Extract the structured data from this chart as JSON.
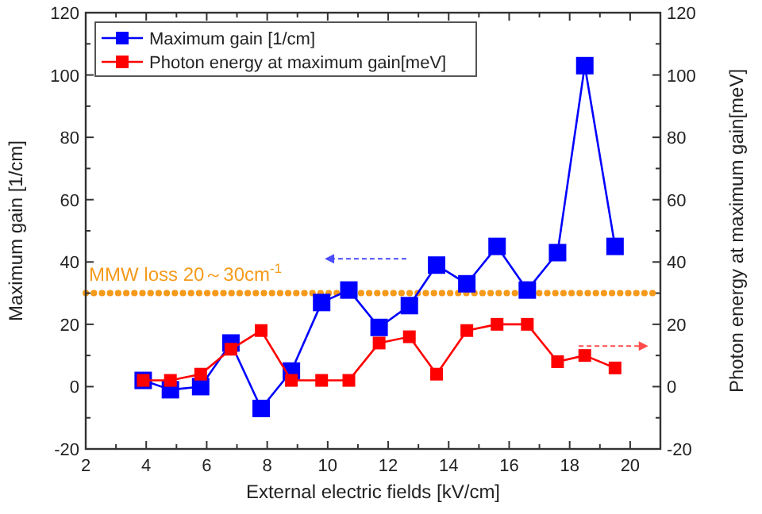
{
  "chart_data": {
    "type": "line",
    "xlabel": "External electric fields [kV/cm]",
    "ylabel": "Maximum gain [1/cm]",
    "y2label": "Photon energy at maximum gain[meV]",
    "x": [
      3.9,
      4.8,
      5.8,
      6.8,
      7.8,
      8.8,
      9.8,
      10.7,
      11.7,
      12.7,
      13.6,
      14.6,
      15.6,
      16.6,
      17.6,
      18.5,
      19.5
    ],
    "series": [
      {
        "name": "Maximum gain [1/cm]",
        "color": "#0000ff",
        "values": [
          2,
          -1,
          0,
          14,
          -7,
          5,
          27,
          31,
          19,
          26,
          39,
          33,
          45,
          31,
          43,
          103,
          45
        ]
      },
      {
        "name": "Photon energy at maximum gain[meV]",
        "color": "#ff0000",
        "axis": "y2",
        "values": [
          2,
          2,
          4,
          12,
          18,
          2,
          2,
          2,
          14,
          16,
          4,
          18,
          20,
          20,
          8,
          10,
          6
        ]
      }
    ],
    "xlim": [
      2,
      21
    ],
    "xticks": [
      2,
      4,
      6,
      8,
      10,
      12,
      14,
      16,
      18,
      20
    ],
    "ylim": [
      -20,
      120
    ],
    "yticks": [
      -20,
      0,
      20,
      40,
      60,
      80,
      100,
      120
    ],
    "y2lim": [
      -20,
      120
    ],
    "y2ticks": [
      -20,
      0,
      20,
      40,
      60,
      80,
      100,
      120
    ],
    "ref_lines": [
      {
        "axis": "y",
        "value": 30,
        "label": "MMW loss 20～30cm$^{-1}$",
        "color": "#f59a1b",
        "line_style": "dotted"
      }
    ],
    "marker": "square",
    "legend": "top left",
    "grid": false
  }
}
